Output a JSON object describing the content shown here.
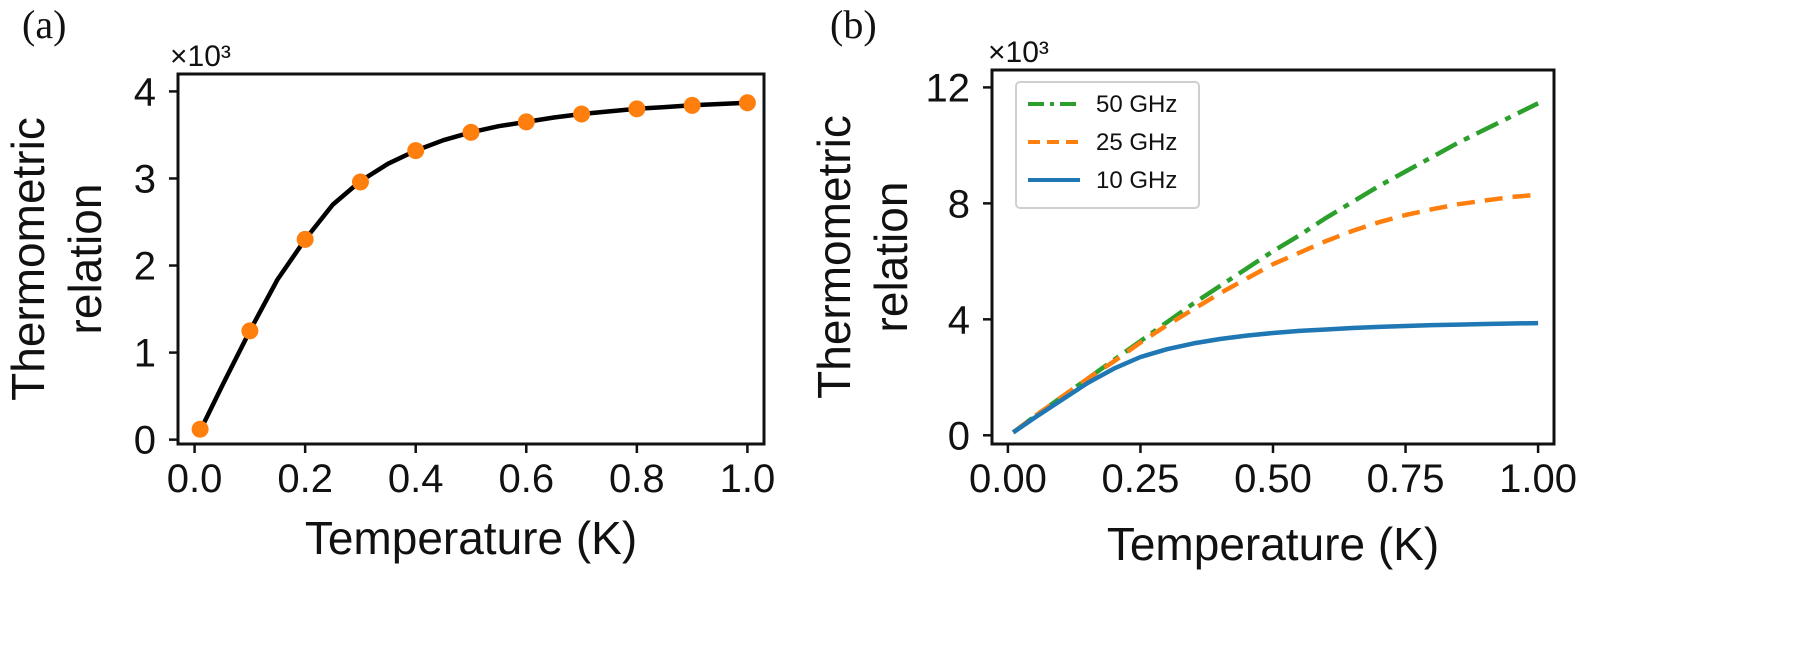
{
  "chart_data": [
    {
      "type": "line",
      "panel_label": "(a)",
      "multiplier_label": "×10³",
      "xlabel": "Temperature (K)",
      "ylabel_line1": "Thermometric",
      "ylabel_line2": "relation",
      "xlim": [
        -0.03,
        1.03
      ],
      "ylim": [
        -0.05,
        4.2
      ],
      "xticks": [
        0.0,
        0.2,
        0.4,
        0.6,
        0.8,
        1.0
      ],
      "xtick_labels": [
        "0.0",
        "0.2",
        "0.4",
        "0.6",
        "0.8",
        "1.0"
      ],
      "yticks": [
        0,
        1,
        2,
        3,
        4
      ],
      "ytick_labels": [
        "0",
        "1",
        "2",
        "3",
        "4"
      ],
      "series": [
        {
          "name": "fit",
          "style": "line",
          "color": "#000000",
          "x": [
            0.01,
            0.05,
            0.1,
            0.15,
            0.2,
            0.25,
            0.3,
            0.35,
            0.4,
            0.45,
            0.5,
            0.55,
            0.6,
            0.65,
            0.7,
            0.75,
            0.8,
            0.85,
            0.9,
            0.95,
            1.0
          ],
          "y": [
            0.1,
            0.62,
            1.25,
            1.84,
            2.3,
            2.7,
            2.97,
            3.17,
            3.32,
            3.44,
            3.53,
            3.6,
            3.65,
            3.7,
            3.74,
            3.77,
            3.8,
            3.82,
            3.84,
            3.855,
            3.87
          ]
        },
        {
          "name": "points",
          "style": "markers",
          "color": "#ff7f0e",
          "x": [
            0.01,
            0.1,
            0.2,
            0.3,
            0.4,
            0.5,
            0.6,
            0.7,
            0.8,
            0.9,
            1.0
          ],
          "y": [
            0.12,
            1.25,
            2.3,
            2.96,
            3.32,
            3.53,
            3.65,
            3.74,
            3.8,
            3.84,
            3.87
          ]
        }
      ]
    },
    {
      "type": "line",
      "panel_label": "(b)",
      "multiplier_label": "×10³",
      "xlabel": "Temperature (K)",
      "ylabel_line1": "Thermometric",
      "ylabel_line2": "relation",
      "xlim": [
        -0.03,
        1.03
      ],
      "ylim": [
        -0.3,
        12.6
      ],
      "xticks": [
        0.0,
        0.25,
        0.5,
        0.75,
        1.0
      ],
      "xtick_labels": [
        "0.00",
        "0.25",
        "0.50",
        "0.75",
        "1.00"
      ],
      "yticks": [
        0,
        4,
        8,
        12
      ],
      "ytick_labels": [
        "0",
        "4",
        "8",
        "12"
      ],
      "legend_position": "top-left",
      "series": [
        {
          "name": "50 GHz",
          "style": "dashdot",
          "color": "#2ca02c",
          "x": [
            0.01,
            0.05,
            0.1,
            0.15,
            0.2,
            0.25,
            0.3,
            0.35,
            0.4,
            0.45,
            0.5,
            0.55,
            0.6,
            0.65,
            0.7,
            0.75,
            0.8,
            0.85,
            0.9,
            0.95,
            1.0
          ],
          "y": [
            0.1,
            0.65,
            1.3,
            1.95,
            2.6,
            3.25,
            3.9,
            4.55,
            5.15,
            5.75,
            6.35,
            6.9,
            7.5,
            8.05,
            8.6,
            9.1,
            9.6,
            10.1,
            10.55,
            11.0,
            11.45
          ]
        },
        {
          "name": "25 GHz",
          "style": "dashed",
          "color": "#ff7f0e",
          "x": [
            0.01,
            0.05,
            0.1,
            0.15,
            0.2,
            0.25,
            0.3,
            0.35,
            0.4,
            0.45,
            0.5,
            0.55,
            0.6,
            0.65,
            0.7,
            0.75,
            0.8,
            0.85,
            0.9,
            0.95,
            1.0
          ],
          "y": [
            0.1,
            0.65,
            1.3,
            1.95,
            2.55,
            3.2,
            3.8,
            4.35,
            4.9,
            5.4,
            5.9,
            6.3,
            6.7,
            7.05,
            7.35,
            7.6,
            7.8,
            7.97,
            8.1,
            8.22,
            8.3
          ]
        },
        {
          "name": "10 GHz",
          "style": "solid",
          "color": "#1f77b4",
          "x": [
            0.01,
            0.05,
            0.1,
            0.15,
            0.2,
            0.25,
            0.3,
            0.35,
            0.4,
            0.45,
            0.5,
            0.55,
            0.6,
            0.65,
            0.7,
            0.75,
            0.8,
            0.85,
            0.9,
            0.95,
            1.0
          ],
          "y": [
            0.1,
            0.6,
            1.2,
            1.8,
            2.3,
            2.7,
            2.97,
            3.17,
            3.32,
            3.44,
            3.53,
            3.6,
            3.65,
            3.7,
            3.74,
            3.77,
            3.8,
            3.82,
            3.84,
            3.855,
            3.87
          ]
        }
      ]
    }
  ]
}
